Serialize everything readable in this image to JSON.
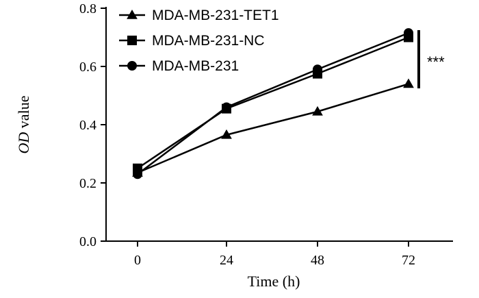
{
  "chart_data": {
    "type": "line",
    "title": "",
    "xlabel": "Time (h)",
    "ylabel_italic": "OD",
    "ylabel_rest": " value",
    "x": [
      0,
      24,
      48,
      72
    ],
    "xticks": [
      "0",
      "24",
      "48",
      "72"
    ],
    "ylim": [
      0.0,
      0.8
    ],
    "yticks": [
      "0.0",
      "0.2",
      "0.4",
      "0.6",
      "0.8"
    ],
    "grid": false,
    "legend_position": "top-left",
    "series": [
      {
        "name": "MDA-MB-231-TET1",
        "marker": "triangle",
        "values": [
          0.235,
          0.365,
          0.445,
          0.54
        ]
      },
      {
        "name": "MDA-MB-231-NC",
        "marker": "square",
        "values": [
          0.25,
          0.455,
          0.575,
          0.7
        ]
      },
      {
        "name": "MDA-MB-231",
        "marker": "circle",
        "values": [
          0.23,
          0.46,
          0.59,
          0.715
        ]
      }
    ],
    "annotation": "***"
  },
  "colors": {
    "line": "#000000",
    "background": "#ffffff"
  }
}
